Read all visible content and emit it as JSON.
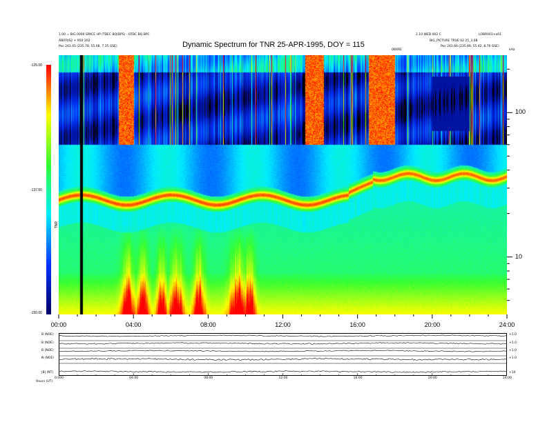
{
  "header": {
    "title": "Dynamic Spectrum for TNR 25-APR-1995, DOY = 115",
    "info_left_1": "1.00 = BIG 0000 SPACE HP (TDEC BQ(BPS) - OTBC BQ BPC",
    "info_left_2": "ABIFRIS2 + 950 202",
    "info_left_3": "Pos    243.45 (235.78, 55.08, 7.35 GSE)",
    "info_right_1": "1.10 WED 002 C",
    "info_right_2": "LOBR001+a01",
    "info_right_3": "BIG_PICTURE TRUE 02 25_3.0B",
    "info_right_4": "Pos    243.66 (235.89, 55.42, 8.76 GSE)",
    "marker_label": "0BXRE",
    "khz_label": "kHz",
    "colorbar_label": "TNR",
    "bottom_label": "Hours  (UT)"
  },
  "colorbar": {
    "ticks": [
      "-125.00",
      "-137.50",
      "-150.00"
    ]
  },
  "panel_labels": [
    {
      "left": "B (NOE)",
      "right": "+1.0"
    },
    {
      "left": "B (NOE)",
      "right": "+1.0"
    },
    {
      "left": "B (NOE)",
      "right": "+1.0"
    },
    {
      "left": "N (NOE)",
      "right": "+1.0"
    },
    {
      "left": "|B| (NT)",
      "right": "+10"
    }
  ],
  "panel_ticks": [
    "0:000",
    "04:00",
    "08:00",
    "12:00",
    "16:00",
    "20:00",
    "24:00"
  ],
  "chart_data": {
    "type": "heatmap",
    "title": "Dynamic Spectrum for TNR 25-APR-1995, DOY = 115",
    "xlabel": "",
    "ylabel": "kHz",
    "x_ticks": [
      "00:00",
      "04:00",
      "08:00",
      "12:00",
      "16:00",
      "20:00",
      "24:00"
    ],
    "x_range_hours": [
      0,
      24
    ],
    "y_scale": "log",
    "y_range_khz": [
      4,
      250
    ],
    "y_tick_labels": [
      "100",
      "10"
    ],
    "y_tick_values": [
      100,
      10
    ],
    "color_range": [
      -150.0,
      -125.0
    ],
    "colormap": [
      "#000066",
      "#0033ff",
      "#00eeff",
      "#33ff33",
      "#ffff00",
      "#ff0000"
    ],
    "features": [
      {
        "name": "upper band edge",
        "freq_khz": 60
      },
      {
        "name": "plasma line",
        "start_hour": 0,
        "end_hour": 15.5,
        "freq_khz": 26
      },
      {
        "name": "plasma line",
        "start_hour": 16,
        "end_hour": 24,
        "freq_khz": 36
      },
      {
        "name": "data gap",
        "hour": 1.2
      }
    ]
  }
}
